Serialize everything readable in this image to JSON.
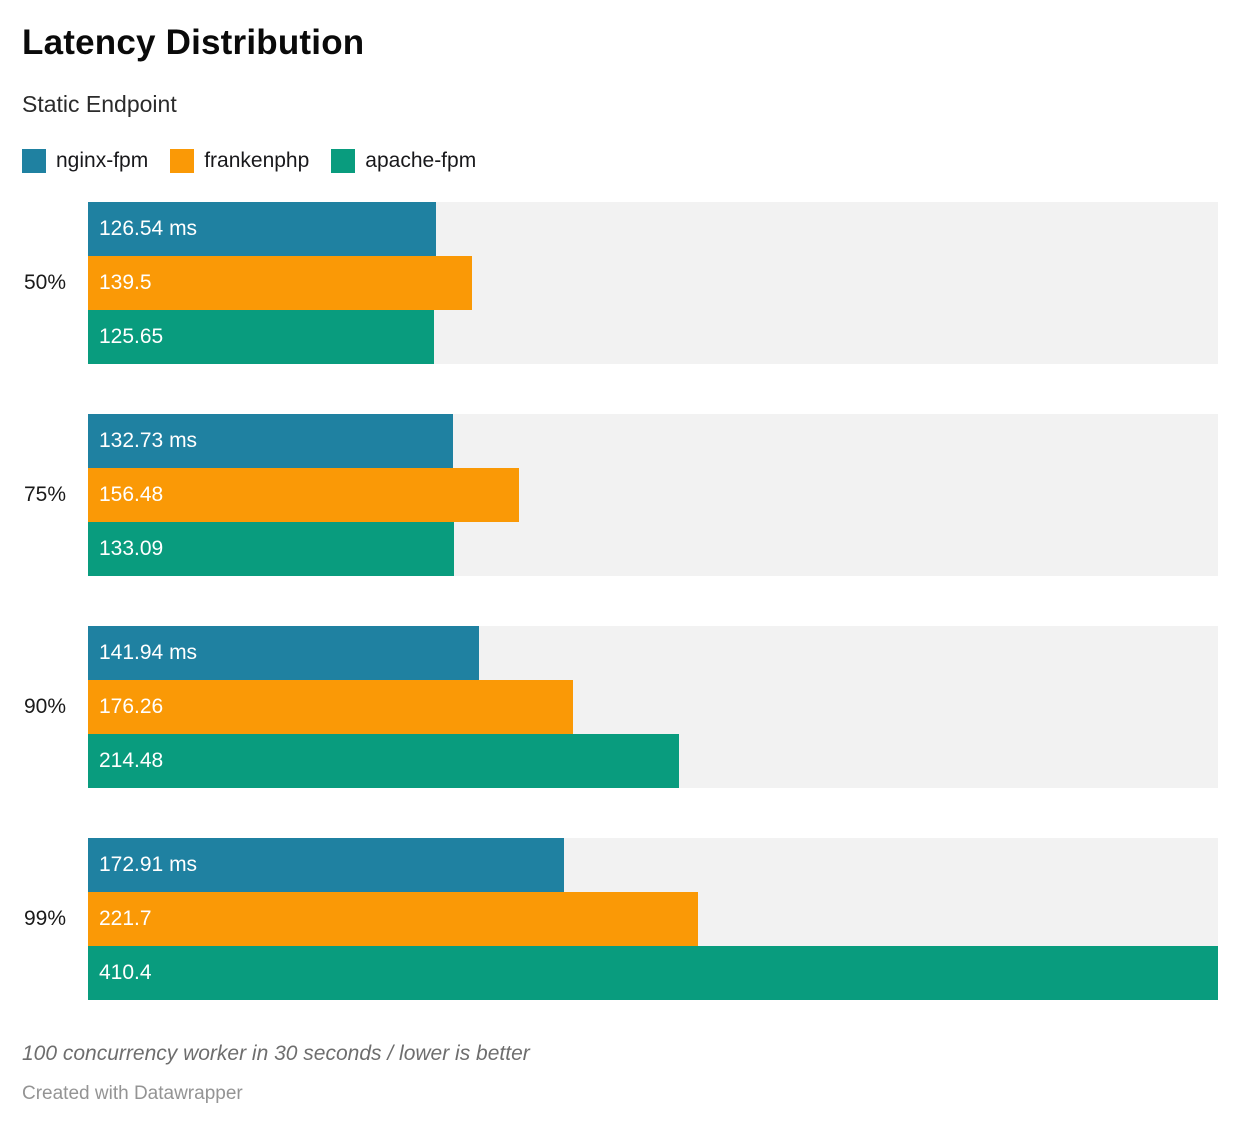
{
  "header": {
    "title": "Latency Distribution",
    "subtitle": "Static Endpoint"
  },
  "legend": {
    "items": [
      {
        "label": "nginx-fpm",
        "color": "#1f81a1"
      },
      {
        "label": "frankenphp",
        "color": "#fa9906"
      },
      {
        "label": "apache-fpm",
        "color": "#099c7e"
      }
    ]
  },
  "chart_data": {
    "type": "bar",
    "orientation": "horizontal",
    "title": "Latency Distribution",
    "subtitle": "Static Endpoint",
    "xlabel": "",
    "ylabel": "",
    "unit": "ms",
    "xlim": [
      0,
      410.4
    ],
    "xmax": 410.4,
    "grid": false,
    "legend_position": "top",
    "track_color": "#f2f2f2",
    "categories": [
      "50%",
      "75%",
      "90%",
      "99%"
    ],
    "series": [
      {
        "name": "nginx-fpm",
        "color": "#1f81a1",
        "values": [
          126.54,
          132.73,
          141.94,
          172.91
        ],
        "labels": [
          "126.54 ms",
          "132.73 ms",
          "141.94 ms",
          "172.91 ms"
        ]
      },
      {
        "name": "frankenphp",
        "color": "#fa9906",
        "values": [
          139.5,
          156.48,
          176.26,
          221.7
        ],
        "labels": [
          "139.5",
          "156.48",
          "176.26",
          "221.7"
        ]
      },
      {
        "name": "apache-fpm",
        "color": "#099c7e",
        "values": [
          125.65,
          133.09,
          214.48,
          410.4
        ],
        "labels": [
          "125.65",
          "133.09",
          "214.48",
          "410.4"
        ]
      }
    ]
  },
  "footer": {
    "note": "100 concurrency worker in 30 seconds / lower is better",
    "attribution": "Created with Datawrapper"
  }
}
